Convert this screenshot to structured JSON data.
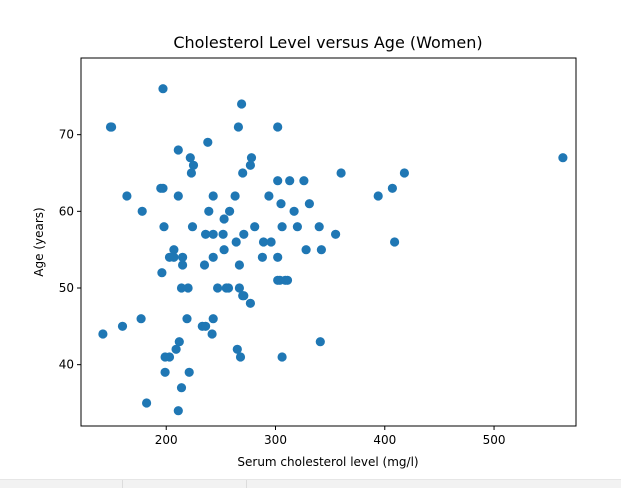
{
  "chart_data": {
    "type": "scatter",
    "title": "Cholesterol Level versus Age (Women)",
    "xlabel": "Serum cholesterol level (mg/l)",
    "ylabel": "Age (years)",
    "xlim": [
      122,
      575
    ],
    "ylim": [
      32,
      80
    ],
    "xticks": [
      200,
      300,
      400,
      500
    ],
    "yticks": [
      40,
      50,
      60,
      70
    ],
    "grid": false,
    "marker_color": "#1f77b4",
    "x": [
      197,
      149,
      266,
      302,
      269,
      150,
      211,
      238,
      222,
      278,
      225,
      277,
      223,
      270,
      360,
      418,
      563,
      197,
      195,
      164,
      211,
      263,
      243,
      302,
      294,
      313,
      326,
      331,
      207,
      264,
      252,
      271,
      178,
      239,
      305,
      394,
      407,
      317,
      258,
      198,
      243,
      224,
      253,
      236,
      243,
      281,
      306,
      355,
      340,
      320,
      289,
      296,
      342,
      328,
      409,
      302,
      207,
      235,
      267,
      288,
      203,
      215,
      253,
      302,
      215,
      220,
      214,
      311,
      196,
      267,
      270,
      257,
      247,
      271,
      277,
      309,
      304,
      255,
      243,
      219,
      177,
      242,
      233,
      160,
      142,
      212,
      209,
      236,
      265,
      203,
      268,
      199,
      306,
      341,
      221,
      199,
      214,
      182,
      211
    ],
    "y": [
      76,
      71,
      71,
      71,
      74,
      71,
      68,
      69,
      67,
      67,
      66,
      66,
      65,
      65,
      65,
      65,
      67,
      63,
      63,
      62,
      62,
      62,
      62,
      64,
      62,
      64,
      64,
      61,
      55,
      56,
      57,
      57,
      60,
      60,
      61,
      62,
      63,
      60,
      60,
      58,
      57,
      58,
      59,
      57,
      54,
      58,
      58,
      57,
      58,
      58,
      56,
      56,
      55,
      55,
      56,
      54,
      54,
      53,
      53,
      54,
      54,
      53,
      55,
      51,
      54,
      50,
      50,
      51,
      52,
      50,
      49,
      50,
      50,
      49,
      48,
      51,
      51,
      50,
      46,
      46,
      46,
      44,
      45,
      45,
      44,
      43,
      42,
      45,
      42,
      41,
      41,
      39,
      41,
      43,
      39,
      41,
      37,
      35,
      34
    ]
  }
}
